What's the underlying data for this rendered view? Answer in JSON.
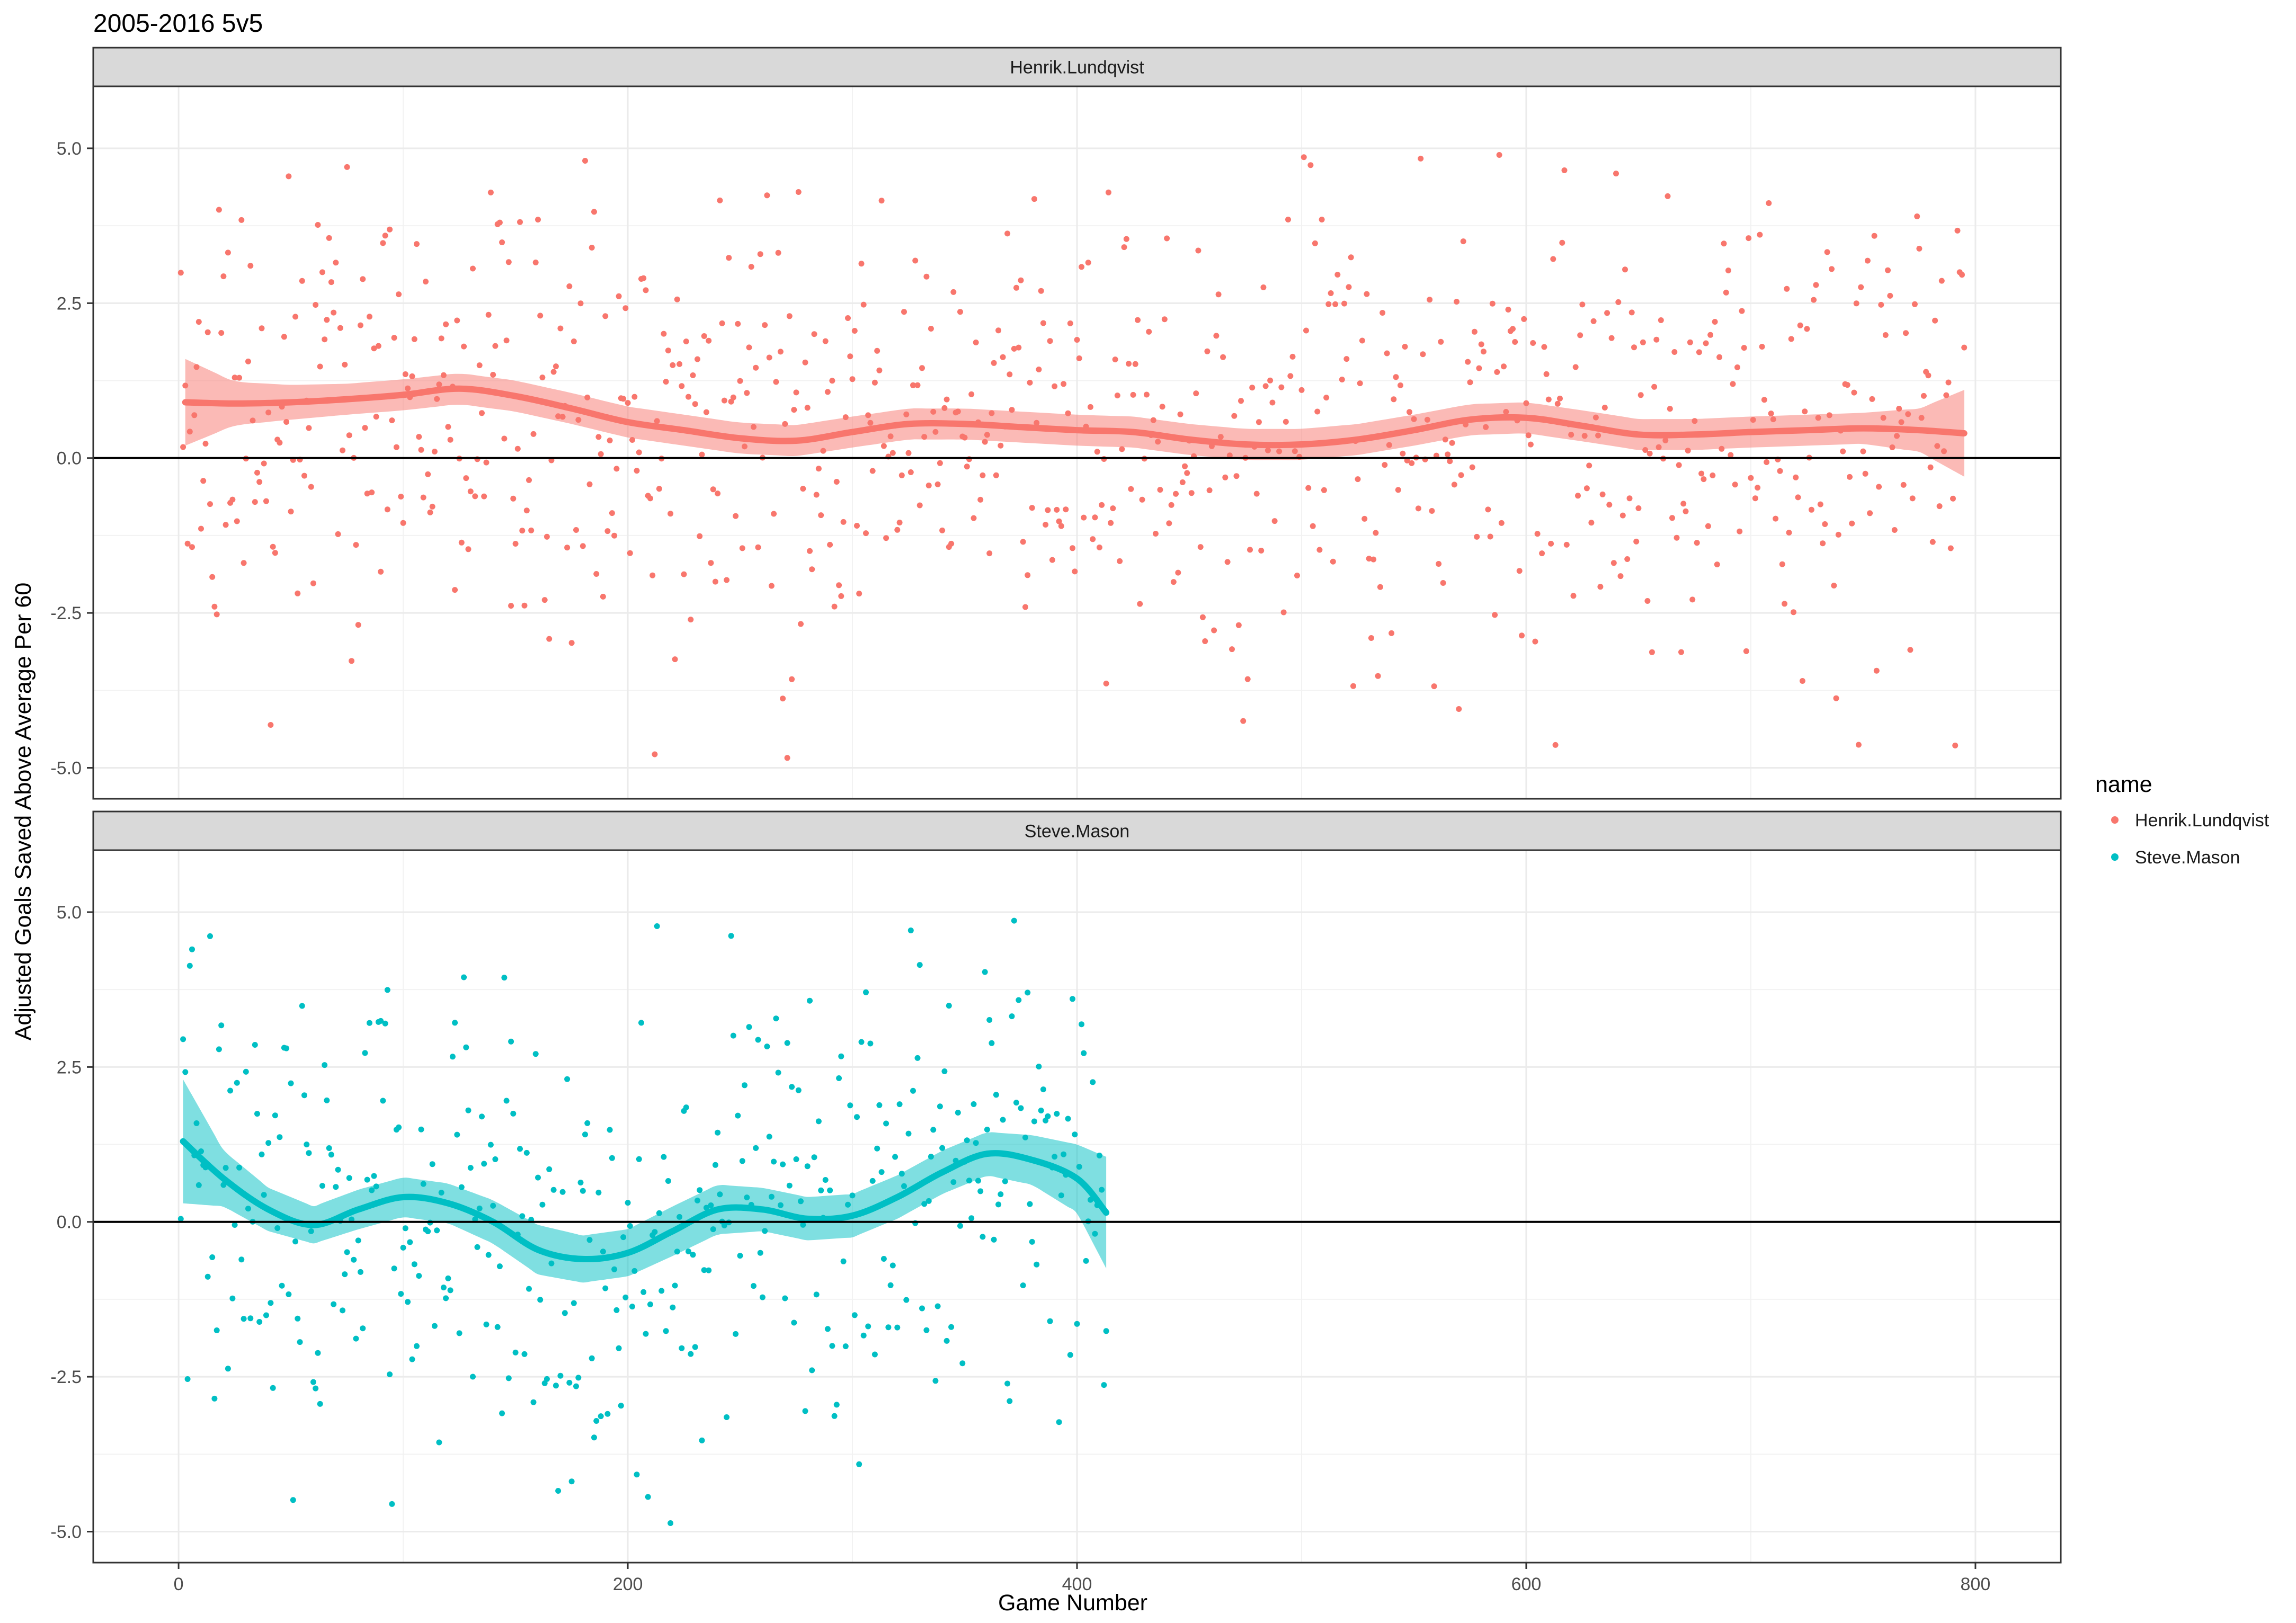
{
  "chart_data": {
    "type": "scatter",
    "title": "2005-2016 5v5",
    "xlabel": "Game Number",
    "ylabel": "Adjusted Goals Saved Above Average Per 60",
    "xlim": [
      -38,
      838
    ],
    "ylim": [
      -5.5,
      6.0
    ],
    "x_ticks": [
      0,
      200,
      400,
      600,
      800
    ],
    "x_tick_labels": [
      "0",
      "200",
      "400",
      "600",
      "800"
    ],
    "y_ticks": [
      -5,
      -2.5,
      0,
      2.5,
      5
    ],
    "y_tick_labels": [
      "-5.0",
      "-2.5",
      "0.0",
      "2.5",
      "5.0"
    ],
    "reference_line_y": 0,
    "grid": true,
    "legend": {
      "title": "name",
      "placement": "right",
      "entries": [
        "Henrik.Lundqvist",
        "Steve.Mason"
      ]
    },
    "facets": [
      {
        "label": "Henrik.Lundqvist",
        "color": "#F8766D",
        "n_games": 795,
        "smooth": {
          "x": [
            3,
            25,
            50,
            75,
            100,
            125,
            150,
            175,
            200,
            225,
            250,
            275,
            300,
            325,
            350,
            375,
            400,
            425,
            450,
            475,
            500,
            525,
            550,
            575,
            600,
            625,
            650,
            675,
            700,
            725,
            750,
            775,
            795
          ],
          "y": [
            0.9,
            0.88,
            0.9,
            0.95,
            1.02,
            1.12,
            1.0,
            0.8,
            0.58,
            0.45,
            0.32,
            0.28,
            0.42,
            0.55,
            0.55,
            0.5,
            0.45,
            0.42,
            0.3,
            0.22,
            0.22,
            0.3,
            0.45,
            0.62,
            0.65,
            0.52,
            0.38,
            0.38,
            0.42,
            0.45,
            0.48,
            0.45,
            0.4
          ],
          "band_halfwidth": [
            0.7,
            0.35,
            0.28,
            0.25,
            0.25,
            0.25,
            0.25,
            0.25,
            0.25,
            0.25,
            0.25,
            0.25,
            0.25,
            0.25,
            0.25,
            0.25,
            0.25,
            0.25,
            0.25,
            0.25,
            0.25,
            0.25,
            0.25,
            0.25,
            0.25,
            0.25,
            0.25,
            0.25,
            0.25,
            0.25,
            0.25,
            0.35,
            0.7
          ]
        }
      },
      {
        "label": "Steve.Mason",
        "color": "#00BFC4",
        "n_games": 413,
        "smooth": {
          "x": [
            2,
            20,
            40,
            60,
            80,
            100,
            120,
            140,
            160,
            180,
            200,
            220,
            240,
            260,
            280,
            300,
            320,
            340,
            360,
            380,
            400,
            413
          ],
          "y": [
            1.3,
            0.7,
            0.2,
            -0.05,
            0.2,
            0.4,
            0.3,
            0.0,
            -0.45,
            -0.6,
            -0.5,
            -0.15,
            0.2,
            0.2,
            0.05,
            0.1,
            0.4,
            0.8,
            1.1,
            1.0,
            0.7,
            0.15
          ],
          "band_halfwidth": [
            1.0,
            0.45,
            0.35,
            0.3,
            0.32,
            0.32,
            0.32,
            0.35,
            0.4,
            0.38,
            0.38,
            0.4,
            0.4,
            0.35,
            0.35,
            0.35,
            0.35,
            0.35,
            0.35,
            0.4,
            0.55,
            0.9
          ]
        }
      }
    ]
  }
}
